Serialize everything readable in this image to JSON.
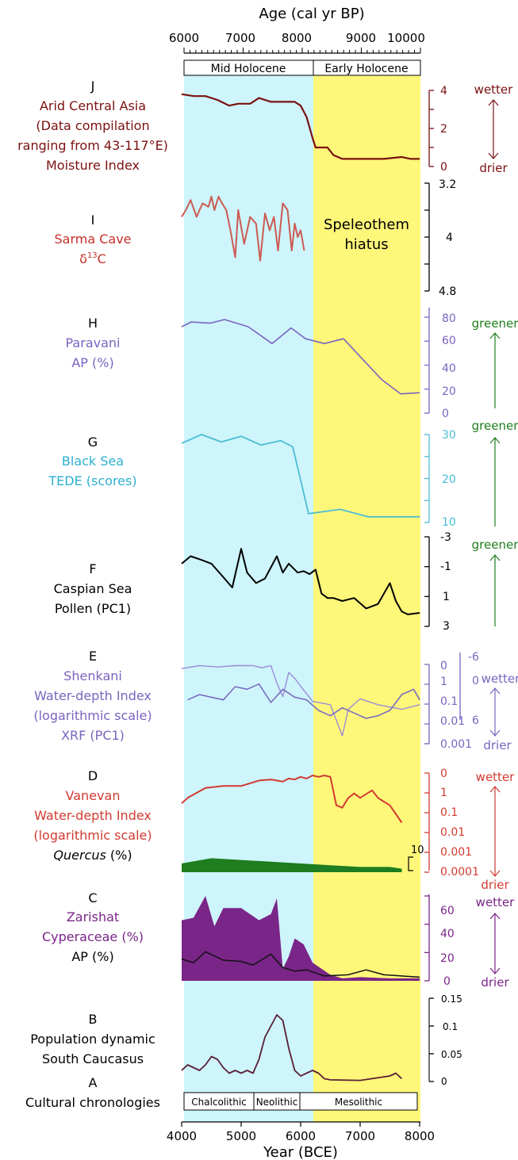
{
  "top_axis": {
    "label": "Age (cal yr BP)",
    "ticks": [
      "6000",
      "7000",
      "8000",
      "9000",
      "10000"
    ],
    "periods": [
      "Mid Holocene",
      "Early Holocene"
    ]
  },
  "bottom_axis": {
    "label": "Year (BCE)",
    "ticks": [
      "4000",
      "5000",
      "6000",
      "7000",
      "8000"
    ],
    "cultures": [
      "Chalcolithic",
      "Neolithic",
      "Mesolithic"
    ]
  },
  "hiatus_label": [
    "Speleothem",
    "hiatus"
  ],
  "panels": {
    "J": {
      "letter": "J",
      "lines": [
        "Arid Central Asia",
        "(Data compilation",
        "ranging from 43-117°E)",
        "Moisture Index"
      ],
      "ticks": [
        "4",
        "2",
        "0"
      ],
      "indicator": [
        "wetter",
        "drier"
      ]
    },
    "I": {
      "letter": "I",
      "lines": [
        "Sarma Cave"
      ],
      "delta": "δ",
      "sup": "13",
      "tail": "C",
      "ticks": [
        "3.2",
        "4",
        "4.8"
      ]
    },
    "H": {
      "letter": "H",
      "lines": [
        "Paravani",
        "AP (%)"
      ],
      "ticks": [
        "80",
        "60",
        "40",
        "20",
        "0"
      ],
      "indicator": [
        "greener"
      ]
    },
    "G": {
      "letter": "G",
      "lines": [
        "Black Sea",
        "TEDE (scores)"
      ],
      "ticks": [
        "30",
        "20",
        "10"
      ],
      "indicator": [
        "greener"
      ]
    },
    "F": {
      "letter": "F",
      "lines": [
        "Caspian Sea",
        "Pollen (PC1)"
      ],
      "ticks": [
        "-3",
        "-1",
        "1",
        "3"
      ],
      "indicator": [
        "greener"
      ]
    },
    "E": {
      "letter": "E",
      "lines": [
        "Shenkani",
        "Water-depth Index",
        "(logarithmic scale)",
        "XRF (PC1)"
      ],
      "ticks_left": [
        "0",
        "1",
        "0.1",
        "0.01",
        "0.001"
      ],
      "ticks_right": [
        "-6",
        "0",
        "6"
      ],
      "indicator": [
        "wetter",
        "drier"
      ]
    },
    "D": {
      "letter": "D",
      "lines": [
        "Vanevan",
        "Water-depth Index",
        "(logarithmic scale)"
      ],
      "quercus": "Quercus",
      "quercus_tail": " (%)",
      "ticks": [
        "0",
        "1",
        "0.1",
        "0.01",
        "0.001",
        "0.0001"
      ],
      "scale_label": "10",
      "indicator": [
        "wetter",
        "drier"
      ]
    },
    "C": {
      "letter": "C",
      "lines": [
        "Zarishat",
        "Cyperaceae (%)",
        "AP (%)"
      ],
      "ticks": [
        "60",
        "40",
        "20",
        "0"
      ],
      "indicator": [
        "wetter",
        "drier"
      ]
    },
    "B": {
      "letter": "B",
      "lines": [
        "Population dynamic",
        "South Caucasus"
      ],
      "ticks": [
        "0.15",
        "0.1",
        "0.05",
        "0"
      ]
    },
    "A": {
      "letter": "A",
      "lines": [
        "Cultural chronologies"
      ]
    }
  },
  "colors": {
    "mid_holocene_band": "#cdf5fb",
    "early_holocene_band": "#fff77a",
    "J": "#7a1010",
    "I": "#cc5a52",
    "H": "#7a64c0",
    "G": "#4dbcd4",
    "F": "#000000",
    "E": "#7a6cc0",
    "D": "#d23a30",
    "quercus": "#1e7d1e",
    "C": "#7a2588",
    "B": "#5a1e36",
    "green_arrow": "#1e7d1e"
  },
  "chart_data": [
    {
      "id": "J",
      "type": "line",
      "title": "Arid Central Asia Moisture Index",
      "x_unit": "Year (BCE)",
      "ylim": [
        0,
        4
      ],
      "x": [
        4000,
        4200,
        4400,
        4600,
        4800,
        4950,
        5150,
        5300,
        5500,
        5700,
        5900,
        6000,
        6100,
        6200,
        6250,
        6450,
        6550,
        6700,
        6900,
        7100,
        7400,
        7700,
        7850,
        8000
      ],
      "y": [
        3.8,
        3.7,
        3.7,
        3.5,
        3.2,
        3.3,
        3.3,
        3.6,
        3.4,
        3.4,
        3.4,
        3.2,
        2.6,
        1.5,
        1.0,
        1.0,
        0.6,
        0.4,
        0.4,
        0.4,
        0.4,
        0.5,
        0.4,
        0.4
      ]
    },
    {
      "id": "I",
      "type": "line",
      "title": "Sarma Cave δ13C",
      "x_unit": "Year (BCE)",
      "ylim": [
        3.2,
        4.8
      ],
      "inverted": true,
      "x": [
        4000,
        4070,
        4150,
        4250,
        4350,
        4450,
        4500,
        4550,
        4620,
        4680,
        4750,
        4820,
        4900,
        4950,
        5050,
        5150,
        5250,
        5320,
        5400,
        5480,
        5550,
        5620,
        5700,
        5780,
        5850,
        5900,
        5950,
        6000,
        6060
      ],
      "y": [
        3.7,
        3.6,
        3.45,
        3.7,
        3.5,
        3.55,
        3.4,
        3.6,
        3.4,
        3.5,
        3.6,
        3.9,
        4.3,
        3.6,
        4.1,
        3.7,
        3.8,
        4.35,
        3.65,
        3.9,
        3.7,
        4.2,
        3.5,
        3.6,
        4.2,
        3.8,
        4.0,
        3.9,
        4.2
      ]
    },
    {
      "id": "H",
      "type": "line",
      "title": "Paravani AP (%)",
      "x_unit": "Year (BCE)",
      "ylim": [
        0,
        90
      ],
      "x": [
        4000,
        4200,
        4600,
        4900,
        5400,
        5900,
        6300,
        6600,
        7000,
        7400,
        7800,
        8200,
        8600,
        9000
      ],
      "y": [
        72,
        76,
        75,
        78,
        72,
        58,
        71,
        62,
        58,
        62,
        45,
        28,
        16,
        17
      ]
    },
    {
      "id": "G",
      "type": "line",
      "title": "Black Sea TEDE (scores)",
      "x_unit": "Year (BCE)",
      "ylim": [
        10,
        30
      ],
      "x": [
        4000,
        4500,
        5000,
        5500,
        6000,
        6500,
        6800,
        7200,
        8000,
        8700,
        9400,
        10000
      ],
      "y": [
        28,
        30,
        28.3,
        29.6,
        27.6,
        28.6,
        27.2,
        12,
        13,
        11.3,
        11.3,
        11.3
      ]
    },
    {
      "id": "F",
      "type": "line",
      "title": "Caspian Sea Pollen (PC1)",
      "x_unit": "Year (BCE)",
      "ylim": [
        -3,
        3
      ],
      "inverted": true,
      "x": [
        4000,
        4150,
        4300,
        4500,
        4700,
        4850,
        5000,
        5100,
        5250,
        5400,
        5600,
        5700,
        5800,
        5950,
        6050,
        6150,
        6250,
        6350,
        6450,
        6550,
        6700,
        6900,
        7100,
        7300,
        7500,
        7600,
        7700,
        7800,
        8000
      ],
      "y": [
        -1.2,
        -1.7,
        -1.5,
        -1.2,
        -0.3,
        0.4,
        -2.2,
        -0.6,
        0.1,
        -0.2,
        -1.7,
        -0.6,
        -1.2,
        -0.6,
        -0.7,
        -0.5,
        -0.8,
        0.8,
        1.1,
        1.1,
        1.3,
        1.1,
        1.8,
        1.5,
        0.1,
        1.3,
        2.0,
        2.2,
        2.1
      ]
    },
    {
      "id": "E",
      "type": "line",
      "title": "Shenkani Water-depth Index (logarithmic scale) & XRF (PC1)",
      "x_unit": "Year (BCE)",
      "series": [
        {
          "name": "XRF (PC1)",
          "ylim": [
            -6,
            6
          ],
          "x": [
            4100,
            4300,
            4700,
            4900,
            5100,
            5300,
            5500,
            5700,
            5900,
            6100,
            6300,
            6500,
            6700,
            6900,
            7100,
            7300,
            7500,
            7700,
            7900,
            8000
          ],
          "y": [
            2.5,
            1.5,
            2.5,
            0.0,
            0.5,
            -0.5,
            3.0,
            0.5,
            2.0,
            2.5,
            4.5,
            5.5,
            4.0,
            5.0,
            6.0,
            5.5,
            4.5,
            1.5,
            0.5,
            2.5
          ]
        },
        {
          "name": "Water-depth Index",
          "scale": "log",
          "ylim": [
            0.001,
            1
          ],
          "x": [
            4000,
            4300,
            4600,
            4900,
            5200,
            5350,
            5500,
            5600,
            5700,
            5800,
            5900,
            6000,
            6200,
            6500,
            6700,
            6800,
            7000,
            7300,
            7700,
            8000
          ],
          "y": [
            0.7,
            0.9,
            0.8,
            0.9,
            0.9,
            0.75,
            0.9,
            0.2,
            0.06,
            0.5,
            0.3,
            0.15,
            0.04,
            0.03,
            0.002,
            0.02,
            0.05,
            0.03,
            0.02,
            0.03
          ]
        }
      ]
    },
    {
      "id": "D",
      "type": "line",
      "title": "Vanevan Water-depth Index (logarithmic scale)",
      "x_unit": "Year (BCE)",
      "scale": "log",
      "ylim": [
        0.0001,
        1
      ],
      "x": [
        4000,
        4100,
        4400,
        4700,
        5000,
        5300,
        5500,
        5600,
        5700,
        5800,
        5900,
        6000,
        6100,
        6200,
        6300,
        6400,
        6500,
        6600,
        6700,
        6800,
        6900,
        7000,
        7200,
        7300,
        7400,
        7500,
        7700
      ],
      "y": [
        0.06,
        0.1,
        0.25,
        0.3,
        0.3,
        0.5,
        0.55,
        0.5,
        0.45,
        0.6,
        0.55,
        0.7,
        0.6,
        0.8,
        0.7,
        0.8,
        0.7,
        0.05,
        0.04,
        0.1,
        0.15,
        0.1,
        0.2,
        0.1,
        0.07,
        0.05,
        0.01
      ],
      "quercus": {
        "name": "Quercus (%)",
        "x": [
          4000,
          4500,
          5000,
          5500,
          6000,
          6500,
          7000,
          7500,
          7700
        ],
        "y": [
          5,
          8,
          7,
          6,
          5,
          4,
          3,
          3,
          2
        ]
      }
    },
    {
      "id": "C",
      "type": "area",
      "title": "Zarishat Cyperaceae (%) & AP (%)",
      "x_unit": "Year (BCE)",
      "ylim": [
        0,
        70
      ],
      "series": [
        {
          "name": "Cyperaceae (%)",
          "x": [
            4000,
            4200,
            4400,
            4550,
            4700,
            5000,
            5300,
            5500,
            5600,
            5700,
            5800,
            5900,
            6050,
            6200,
            6500,
            6700,
            7000,
            7500,
            8000
          ],
          "y": [
            50,
            52,
            70,
            45,
            60,
            60,
            50,
            55,
            68,
            10,
            20,
            35,
            30,
            15,
            5,
            2,
            3,
            2,
            2
          ]
        },
        {
          "name": "AP (%)",
          "x": [
            4000,
            4200,
            4400,
            4700,
            5000,
            5200,
            5500,
            5700,
            5900,
            6100,
            6400,
            6800,
            7100,
            7400,
            7700,
            8000
          ],
          "y": [
            18,
            15,
            24,
            17,
            16,
            13,
            22,
            11,
            8,
            9,
            4,
            5,
            9,
            5,
            4,
            3
          ]
        }
      ]
    },
    {
      "id": "B",
      "type": "line",
      "title": "Population dynamic South Caucasus",
      "x_unit": "Year (BCE)",
      "ylim": [
        0,
        0.15
      ],
      "x": [
        4000,
        4100,
        4200,
        4300,
        4400,
        4500,
        4600,
        4700,
        4800,
        4900,
        5000,
        5100,
        5200,
        5300,
        5400,
        5500,
        5600,
        5700,
        5800,
        5900,
        6000,
        6100,
        6200,
        6300,
        6400,
        6500,
        7000,
        7500,
        7600,
        7700
      ],
      "y": [
        0.02,
        0.03,
        0.025,
        0.02,
        0.03,
        0.045,
        0.04,
        0.025,
        0.015,
        0.02,
        0.015,
        0.02,
        0.015,
        0.04,
        0.08,
        0.1,
        0.12,
        0.11,
        0.06,
        0.02,
        0.01,
        0.015,
        0.02,
        0.015,
        0.005,
        0.003,
        0.002,
        0.01,
        0.015,
        0.005
      ]
    }
  ]
}
